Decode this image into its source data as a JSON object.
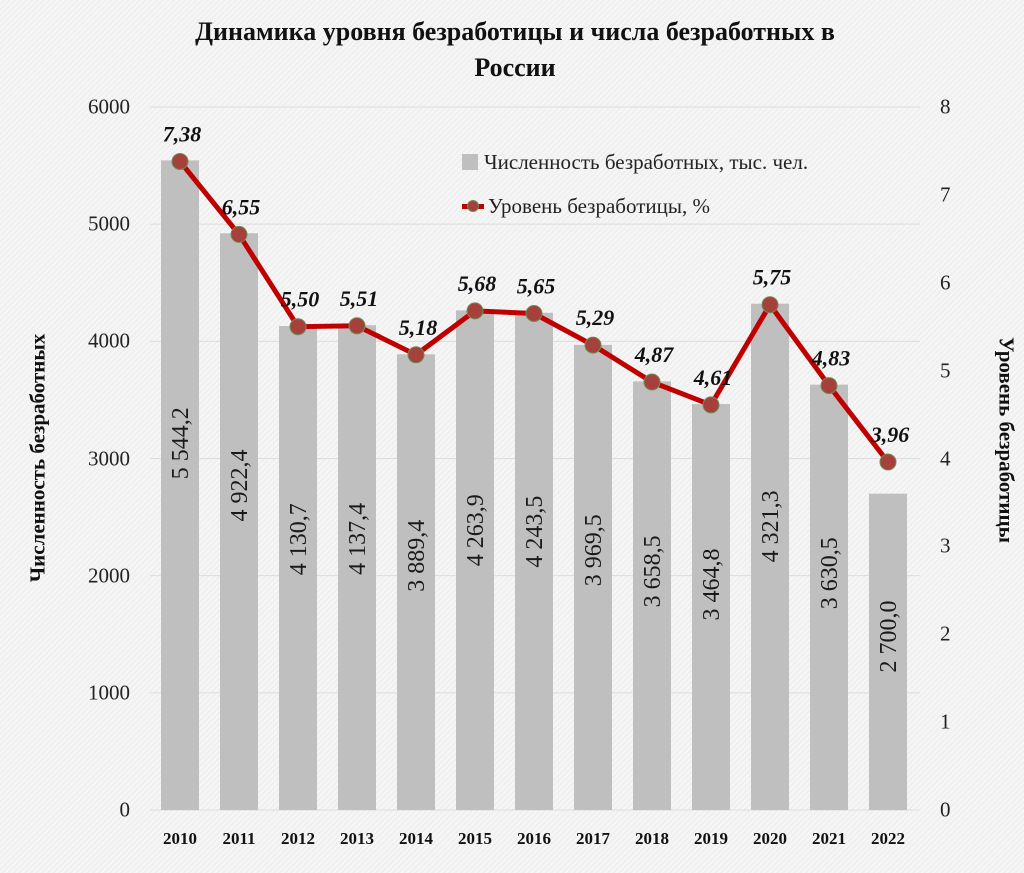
{
  "chart_data": {
    "type": "bar+line",
    "title": "Динамика уровня безработицы и числа безработных в России",
    "categories": [
      "2010",
      "2011",
      "2012",
      "2013",
      "2014",
      "2015",
      "2016",
      "2017",
      "2018",
      "2019",
      "2020",
      "2021",
      "2022"
    ],
    "series": [
      {
        "name": "Численность безработных, тыс. чел.",
        "type": "bar",
        "axis": "left",
        "color": "#bfbfbf",
        "values": [
          5544.2,
          4922.4,
          4130.7,
          4137.4,
          3889.4,
          4263.9,
          4243.5,
          3969.5,
          3658.5,
          3464.8,
          4321.3,
          3630.5,
          2700.0
        ],
        "labels": [
          "5 544,2",
          "4 922,4",
          "4 130,7",
          "4 137,4",
          "3 889,4",
          "4 263,9",
          "4 243,5",
          "3 969,5",
          "3 658,5",
          "3 464,8",
          "4 321,3",
          "3 630,5",
          "2 700,0"
        ]
      },
      {
        "name": "Уровень безработицы, %",
        "type": "line",
        "axis": "right",
        "color": "#c00000",
        "marker_color": "#a5403a",
        "values": [
          7.38,
          6.55,
          5.5,
          5.51,
          5.18,
          5.68,
          5.65,
          5.29,
          4.87,
          4.61,
          5.75,
          4.83,
          3.96
        ],
        "labels": [
          "7,38",
          "6,55",
          "5,50",
          "5,51",
          "5,18",
          "5,68",
          "5,65",
          "5,29",
          "4,87",
          "4,61",
          "5,75",
          "4,83",
          "3,96"
        ]
      }
    ],
    "ylabel": "Численность безработных",
    "ylabel_right": "Уровень безработицы",
    "xlabel": "",
    "ylim": [
      0,
      6000
    ],
    "ylim_right": [
      0,
      8
    ],
    "yticks": [
      "0",
      "1000",
      "2000",
      "3000",
      "4000",
      "5000",
      "6000"
    ],
    "yticks_right": [
      "0",
      "1",
      "2",
      "3",
      "4",
      "5",
      "6",
      "7",
      "8"
    ],
    "grid": true,
    "legend_position": "upper right (inside plot)"
  },
  "title_line1": "Динамика уровня безработицы и числа безработных в",
  "title_line2": "России",
  "legend": {
    "bar_label": "Численность безработных, тыс. чел.",
    "line_label": "Уровень безработицы, %"
  }
}
